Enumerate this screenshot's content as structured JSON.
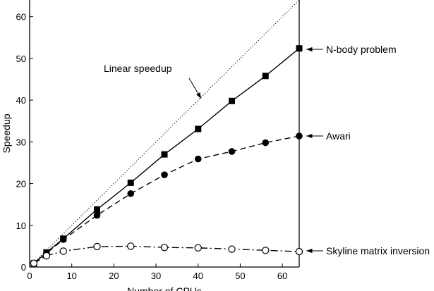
{
  "chart_data": {
    "type": "line",
    "xlabel": "Number of CPUs",
    "ylabel": "Speedup",
    "xlim": [
      0,
      64
    ],
    "ylim": [
      0,
      64
    ],
    "xticks": [
      0,
      10,
      20,
      30,
      40,
      50,
      60
    ],
    "yticks": [
      0,
      10,
      20,
      30,
      40,
      50,
      60
    ],
    "grid": false,
    "legend": "none",
    "series": [
      {
        "name": "Linear speedup",
        "style": "dotted",
        "marker": "none",
        "x": [
          0,
          64
        ],
        "y": [
          0,
          64
        ]
      },
      {
        "name": "N-body problem",
        "style": "solid",
        "marker": "filled-square",
        "x": [
          1,
          4,
          8,
          16,
          24,
          32,
          40,
          48,
          56,
          64
        ],
        "y": [
          0.9,
          3.5,
          6.8,
          13.8,
          20.2,
          27.0,
          33.1,
          39.8,
          45.8,
          52.4
        ]
      },
      {
        "name": "Awari",
        "style": "dashed",
        "marker": "filled-circle",
        "x": [
          1,
          4,
          8,
          16,
          24,
          32,
          40,
          48,
          56,
          64
        ],
        "y": [
          0.9,
          3.3,
          6.6,
          12.4,
          17.6,
          22.1,
          25.9,
          27.7,
          29.8,
          31.4
        ]
      },
      {
        "name": "Skyline matrix inversion",
        "style": "dash-dot",
        "marker": "open-circle",
        "x": [
          1,
          4,
          8,
          16,
          24,
          32,
          40,
          48,
          56,
          64
        ],
        "y": [
          0.9,
          2.7,
          3.8,
          4.9,
          5.0,
          4.7,
          4.6,
          4.3,
          4.0,
          3.7
        ]
      }
    ],
    "annotations": [
      {
        "text": "Linear speedup",
        "series": "Linear speedup"
      },
      {
        "text": "N-body problem",
        "series": "N-body problem"
      },
      {
        "text": "Awari",
        "series": "Awari"
      },
      {
        "text": "Skyline matrix inversion",
        "series": "Skyline matrix inversion"
      }
    ]
  }
}
